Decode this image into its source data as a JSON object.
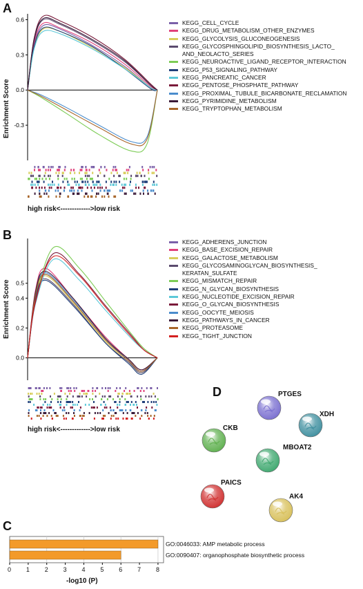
{
  "panels": {
    "a": {
      "letter": "A",
      "ylabel": "Enrichment Score",
      "yticks": [
        "0.6",
        "0.3",
        "0.0",
        "-0.3"
      ],
      "risk_label": "high risk<------------->low risk",
      "legend": [
        {
          "label": "KEGG_CELL_CYCLE",
          "color": "#7a5fa8"
        },
        {
          "label": "KEGG_DRUG_METABOLISM_OTHER_ENZYMES",
          "color": "#e0407a"
        },
        {
          "label": "KEGG_GLYCOLYSIS_GLUCONEOGENESIS",
          "color": "#d8cd5a"
        },
        {
          "label": "KEGG_GLYCOSPHINGOLIPID_BIOSYNTHESIS_LACTO_\nAND_NEOLACTO_SERIES",
          "color": "#5b4b6e"
        },
        {
          "label": "KEGG_NEUROACTIVE_LIGAND_RECEPTOR_INTERACTION",
          "color": "#7ccc55"
        },
        {
          "label": "KEGG_P53_SIGNALING_PATHWAY",
          "color": "#1f3f7a"
        },
        {
          "label": "KEGG_PANCREATIC_CANCER",
          "color": "#5cc8d8"
        },
        {
          "label": "KEGG_PENTOSE_PHOSPHATE_PATHWAY",
          "color": "#7a1a3a"
        },
        {
          "label": "KEGG_PROXIMAL_TUBULE_BICARBONATE_RECLAMATION",
          "color": "#4a8ccc"
        },
        {
          "label": "KEGG_PYRIMIDINE_METABOLISM",
          "color": "#3a1a38"
        },
        {
          "label": "KEGG_TRYPTOPHAN_METABOLISM",
          "color": "#a8662a"
        }
      ]
    },
    "b": {
      "letter": "B",
      "ylabel": "Enrichment Score",
      "yticks": [
        "0.5",
        "0.4",
        "0.2",
        "0.0"
      ],
      "risk_label": "high risk<------------->low risk",
      "legend": [
        {
          "label": "KEGG_ADHERENS_JUNCTION",
          "color": "#7a5fa8"
        },
        {
          "label": "KEGG_BASE_EXCISION_REPAIR",
          "color": "#e0407a"
        },
        {
          "label": "KEGG_GALACTOSE_METABOLISM",
          "color": "#d8cd5a"
        },
        {
          "label": "KEGG_GLYCOSAMINOGLYCAN_BIOSYNTHESIS_\nKERATAN_SULFATE",
          "color": "#5b4b6e"
        },
        {
          "label": "KEGG_MISMATCH_REPAIR",
          "color": "#7ccc55"
        },
        {
          "label": "KEGG_N_GLYCAN_BIOSYNTHESIS",
          "color": "#1f3f7a"
        },
        {
          "label": "KEGG_NUCLEOTIDE_EXCISION_REPAIR",
          "color": "#5cc8d8"
        },
        {
          "label": "KEGG_O_GLYCAN_BIOSYNTHESIS",
          "color": "#7a1a3a"
        },
        {
          "label": "KEGG_OOCYTE_MEIOSIS",
          "color": "#4a8ccc"
        },
        {
          "label": "KEGG_PATHWAYS_IN_CANCER",
          "color": "#3a1a38"
        },
        {
          "label": "KEGG_PROTEASOME",
          "color": "#a8662a"
        },
        {
          "label": "KEGG_TIGHT_JUNCTION",
          "color": "#d42020"
        }
      ]
    },
    "c": {
      "letter": "C",
      "xlabel": "-log10 (P)",
      "xticks": [
        "0",
        "1",
        "2",
        "3",
        "4",
        "5",
        "6",
        "7",
        "8"
      ],
      "bar_color": "#f39a2a"
    },
    "d": {
      "letter": "D",
      "nodes": [
        {
          "label": "PTGES",
          "color": "#7a6fd0"
        },
        {
          "label": "XDH",
          "color": "#3f8f9f"
        },
        {
          "label": "CKB",
          "color": "#5fb04f"
        },
        {
          "label": "MBOAT2",
          "color": "#3fa86f"
        },
        {
          "label": "PAICS",
          "color": "#d03030"
        },
        {
          "label": "AK4",
          "color": "#d8c05a"
        }
      ]
    }
  },
  "chart_data": [
    {
      "type": "line",
      "panel": "A",
      "ylabel": "Enrichment Score",
      "xlabel": "high risk<------------->low risk",
      "ylim": [
        -0.6,
        0.65
      ],
      "x_unit": "gene rank fraction",
      "series": [
        {
          "name": "KEGG_CELL_CYCLE",
          "color": "#7a5fa8",
          "x": [
            0,
            0.05,
            0.12,
            0.25,
            0.5,
            0.75,
            0.95,
            1.0
          ],
          "y": [
            0,
            0.38,
            0.55,
            0.52,
            0.38,
            0.2,
            0.02,
            0
          ]
        },
        {
          "name": "KEGG_DRUG_METABOLISM_OTHER_ENZYMES",
          "color": "#e0407a",
          "x": [
            0,
            0.05,
            0.12,
            0.25,
            0.5,
            0.75,
            0.95,
            1.0
          ],
          "y": [
            0,
            0.4,
            0.57,
            0.53,
            0.4,
            0.22,
            0.03,
            0
          ]
        },
        {
          "name": "KEGG_GLYCOLYSIS_GLUCONEOGENESIS",
          "color": "#d8cd5a",
          "x": [
            0,
            0.05,
            0.12,
            0.25,
            0.5,
            0.75,
            0.95,
            1.0
          ],
          "y": [
            0,
            0.36,
            0.52,
            0.5,
            0.36,
            0.19,
            0.02,
            0
          ]
        },
        {
          "name": "KEGG_GLYCOSPHINGOLIPID_BIOSYNTHESIS_LACTO_AND_NEOLACTO_SERIES",
          "color": "#5b4b6e",
          "x": [
            0,
            0.05,
            0.12,
            0.25,
            0.5,
            0.75,
            0.95,
            1.0
          ],
          "y": [
            0,
            0.42,
            0.6,
            0.56,
            0.42,
            0.24,
            0.04,
            0
          ]
        },
        {
          "name": "KEGG_NEUROACTIVE_LIGAND_RECEPTOR_INTERACTION",
          "color": "#7ccc55",
          "x": [
            0,
            0.1,
            0.3,
            0.55,
            0.8,
            0.92,
            1.0
          ],
          "y": [
            0,
            -0.06,
            -0.2,
            -0.38,
            -0.52,
            -0.46,
            0
          ]
        },
        {
          "name": "KEGG_P53_SIGNALING_PATHWAY",
          "color": "#1f3f7a",
          "x": [
            0,
            0.05,
            0.12,
            0.25,
            0.5,
            0.75,
            0.95,
            1.0
          ],
          "y": [
            0,
            0.37,
            0.53,
            0.5,
            0.37,
            0.18,
            0.01,
            0
          ]
        },
        {
          "name": "KEGG_PANCREATIC_CANCER",
          "color": "#5cc8d8",
          "x": [
            0,
            0.05,
            0.12,
            0.25,
            0.5,
            0.75,
            0.95,
            1.0
          ],
          "y": [
            0,
            0.35,
            0.5,
            0.48,
            0.35,
            0.18,
            0.02,
            0
          ]
        },
        {
          "name": "KEGG_PENTOSE_PHOSPHATE_PATHWAY",
          "color": "#7a1a3a",
          "x": [
            0,
            0.05,
            0.12,
            0.25,
            0.5,
            0.75,
            0.95,
            1.0
          ],
          "y": [
            0,
            0.44,
            0.63,
            0.59,
            0.45,
            0.26,
            0.05,
            0
          ]
        },
        {
          "name": "KEGG_PROXIMAL_TUBULE_BICARBONATE_RECLAMATION",
          "color": "#4a8ccc",
          "x": [
            0,
            0.1,
            0.3,
            0.55,
            0.8,
            0.92,
            1.0
          ],
          "y": [
            0,
            -0.04,
            -0.15,
            -0.3,
            -0.44,
            -0.4,
            0
          ]
        },
        {
          "name": "KEGG_PYRIMIDINE_METABOLISM",
          "color": "#3a1a38",
          "x": [
            0,
            0.05,
            0.12,
            0.25,
            0.5,
            0.75,
            0.95,
            1.0
          ],
          "y": [
            0,
            0.43,
            0.61,
            0.57,
            0.43,
            0.25,
            0.04,
            0
          ]
        },
        {
          "name": "KEGG_TRYPTOPHAN_METABOLISM",
          "color": "#a8662a",
          "x": [
            0,
            0.1,
            0.3,
            0.55,
            0.8,
            0.92,
            1.0
          ],
          "y": [
            0,
            -0.05,
            -0.17,
            -0.32,
            -0.46,
            -0.42,
            0
          ]
        }
      ]
    },
    {
      "type": "line",
      "panel": "B",
      "ylabel": "Enrichment Score",
      "xlabel": "high risk<------------->low risk",
      "ylim": [
        -0.15,
        0.8
      ],
      "x_unit": "gene rank fraction",
      "series": [
        {
          "name": "KEGG_ADHERENS_JUNCTION",
          "color": "#7a5fa8",
          "x": [
            0,
            0.06,
            0.14,
            0.35,
            0.6,
            0.78,
            0.88,
            1.0
          ],
          "y": [
            0,
            0.42,
            0.56,
            0.38,
            0.12,
            -0.02,
            -0.09,
            0
          ]
        },
        {
          "name": "KEGG_BASE_EXCISION_REPAIR",
          "color": "#e0407a",
          "x": [
            0,
            0.06,
            0.14,
            0.35,
            0.6,
            0.78,
            0.88,
            1.0
          ],
          "y": [
            0,
            0.45,
            0.6,
            0.4,
            0.14,
            -0.01,
            -0.08,
            0
          ]
        },
        {
          "name": "KEGG_GALACTOSE_METABOLISM",
          "color": "#d8cd5a",
          "x": [
            0,
            0.06,
            0.14,
            0.35,
            0.6,
            0.78,
            0.88,
            1.0
          ],
          "y": [
            0,
            0.41,
            0.55,
            0.37,
            0.11,
            -0.03,
            -0.1,
            0
          ]
        },
        {
          "name": "KEGG_GLYCOSAMINOGLYCAN_BIOSYNTHESIS_KERATAN_SULFATE",
          "color": "#5b4b6e",
          "x": [
            0,
            0.06,
            0.14,
            0.35,
            0.6,
            0.78,
            0.88,
            1.0
          ],
          "y": [
            0,
            0.4,
            0.53,
            0.36,
            0.1,
            -0.03,
            -0.1,
            0
          ]
        },
        {
          "name": "KEGG_MISMATCH_REPAIR",
          "color": "#7ccc55",
          "x": [
            0,
            0.06,
            0.2,
            0.4,
            0.6,
            0.8,
            0.9,
            1.0
          ],
          "y": [
            0,
            0.38,
            0.74,
            0.6,
            0.38,
            0.16,
            0.06,
            0
          ]
        },
        {
          "name": "KEGG_N_GLYCAN_BIOSYNTHESIS",
          "color": "#1f3f7a",
          "x": [
            0,
            0.06,
            0.14,
            0.35,
            0.6,
            0.78,
            0.88,
            1.0
          ],
          "y": [
            0,
            0.39,
            0.52,
            0.35,
            0.1,
            -0.04,
            -0.11,
            0
          ]
        },
        {
          "name": "KEGG_NUCLEOTIDE_EXCISION_REPAIR",
          "color": "#5cc8d8",
          "x": [
            0,
            0.06,
            0.2,
            0.4,
            0.6,
            0.8,
            0.9,
            1.0
          ],
          "y": [
            0,
            0.36,
            0.66,
            0.52,
            0.32,
            0.13,
            0.05,
            0
          ]
        },
        {
          "name": "KEGG_O_GLYCAN_BIOSYNTHESIS",
          "color": "#7a1a3a",
          "x": [
            0,
            0.06,
            0.2,
            0.4,
            0.6,
            0.8,
            0.9,
            1.0
          ],
          "y": [
            0,
            0.37,
            0.7,
            0.56,
            0.35,
            0.15,
            0.05,
            0
          ]
        },
        {
          "name": "KEGG_OOCYTE_MEIOSIS",
          "color": "#4a8ccc",
          "x": [
            0,
            0.06,
            0.14,
            0.35,
            0.6,
            0.78,
            0.88,
            1.0
          ],
          "y": [
            0,
            0.43,
            0.57,
            0.39,
            0.13,
            -0.02,
            -0.09,
            0
          ]
        },
        {
          "name": "KEGG_PATHWAYS_IN_CANCER",
          "color": "#3a1a38",
          "x": [
            0,
            0.06,
            0.14,
            0.35,
            0.6,
            0.78,
            0.88,
            1.0
          ],
          "y": [
            0,
            0.44,
            0.58,
            0.4,
            0.13,
            -0.01,
            -0.08,
            0
          ]
        },
        {
          "name": "KEGG_PROTEASOME",
          "color": "#a8662a",
          "x": [
            0,
            0.06,
            0.14,
            0.35,
            0.6,
            0.78,
            0.88,
            1.0
          ],
          "y": [
            0,
            0.42,
            0.56,
            0.38,
            0.12,
            -0.02,
            -0.09,
            0
          ]
        },
        {
          "name": "KEGG_TIGHT_JUNCTION",
          "color": "#d42020",
          "x": [
            0,
            0.06,
            0.2,
            0.4,
            0.6,
            0.8,
            0.9,
            1.0
          ],
          "y": [
            0,
            0.38,
            0.68,
            0.55,
            0.34,
            0.14,
            0.05,
            0
          ]
        }
      ]
    },
    {
      "type": "bar",
      "panel": "C",
      "orientation": "horizontal",
      "categories": [
        "GO:0046033: AMP metabolic process",
        "GO:0090407: organophosphate biosynthetic process"
      ],
      "values": [
        8.0,
        6.0
      ],
      "xlabel": "-log10 (P)",
      "xlim": [
        0,
        8.3
      ]
    }
  ]
}
